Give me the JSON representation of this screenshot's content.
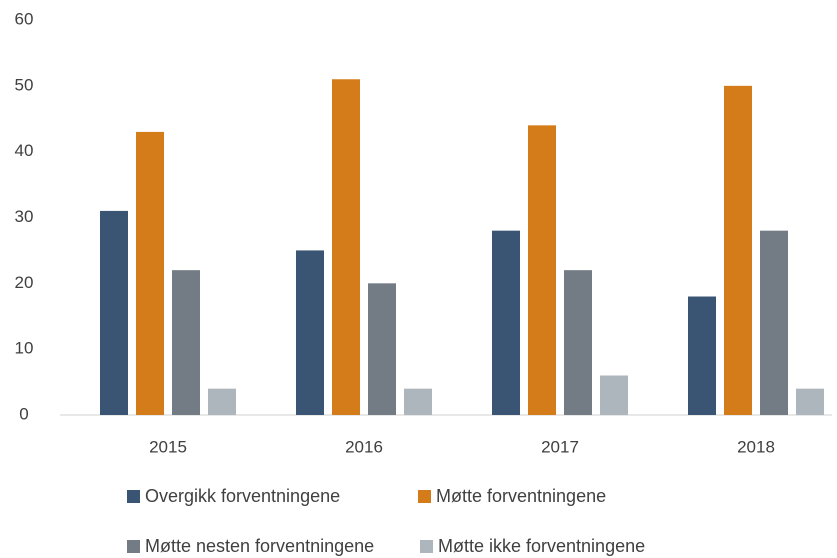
{
  "chart_data": {
    "type": "bar",
    "categories": [
      "2015",
      "2016",
      "2017",
      "2018"
    ],
    "series": [
      {
        "name": "Overgikk forventningene",
        "color": "#3a5573",
        "values": [
          31,
          25,
          28,
          18
        ]
      },
      {
        "name": "Møtte forventningene",
        "color": "#d57c1a",
        "values": [
          43,
          51,
          44,
          50
        ]
      },
      {
        "name": "Møtte nesten forventningene",
        "color": "#737b84",
        "values": [
          22,
          20,
          22,
          28
        ]
      },
      {
        "name": "Møtte ikke forventningene",
        "color": "#adb5bd",
        "values": [
          4,
          4,
          6,
          4
        ]
      }
    ],
    "ylim": [
      0,
      60
    ],
    "yticks": [
      0,
      10,
      20,
      30,
      40,
      50,
      60
    ],
    "grid": false,
    "legend": "bottom"
  }
}
